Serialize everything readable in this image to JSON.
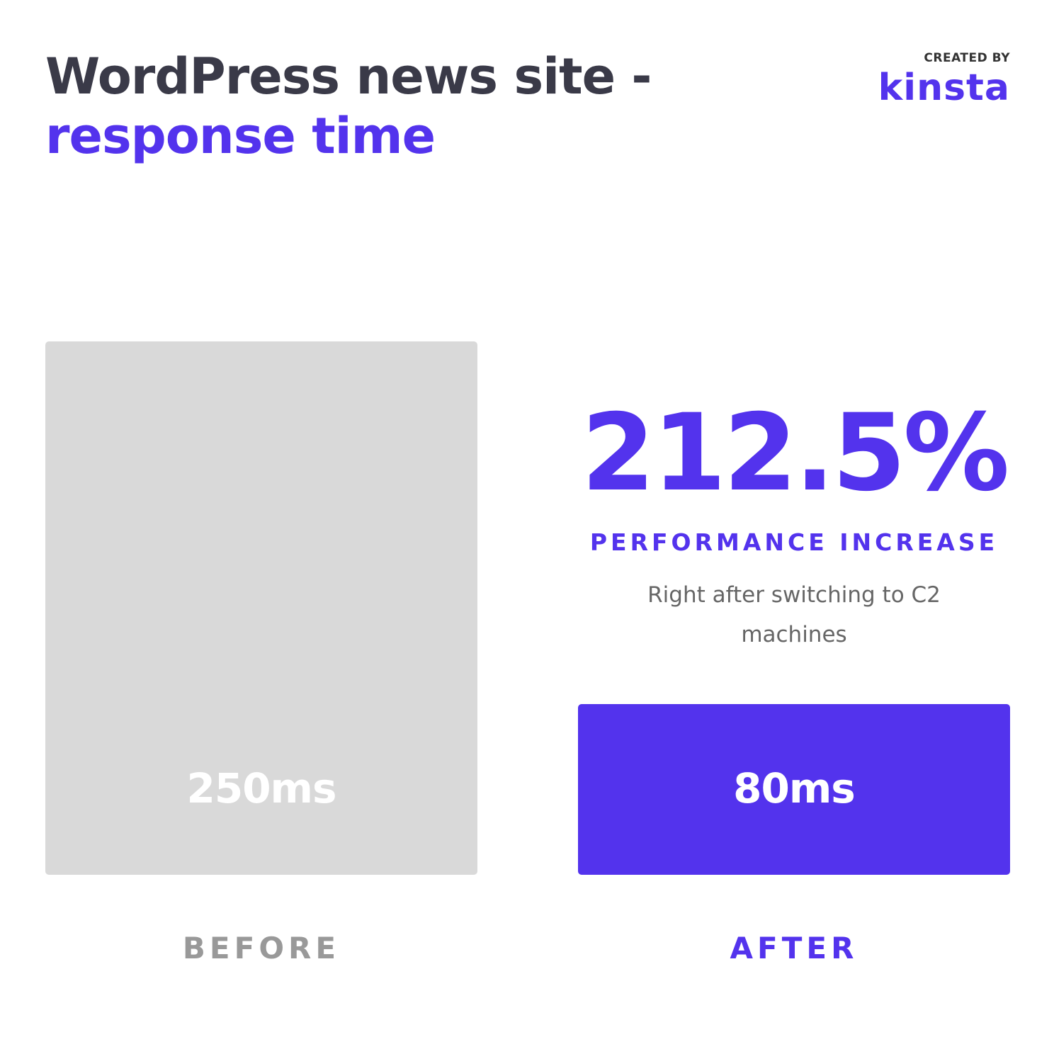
{
  "header": {
    "title": "WordPress news site -",
    "subtitle": "response time",
    "created_by": "CREATED BY",
    "logo": "kinsta"
  },
  "colors": {
    "accent": "#5333ed",
    "before_bar": "#d9d9d9",
    "before_label": "#999999",
    "title": "#3a3a48"
  },
  "highlight": {
    "value": "212.5%",
    "label": "PERFORMANCE INCREASE",
    "description": "Right after switching to C2 machines"
  },
  "chart_data": {
    "type": "bar",
    "categories": [
      "BEFORE",
      "AFTER"
    ],
    "values": [
      250,
      80
    ],
    "value_labels": [
      "250ms",
      "80ms"
    ],
    "ylim": [
      0,
      250
    ],
    "grid": false
  }
}
